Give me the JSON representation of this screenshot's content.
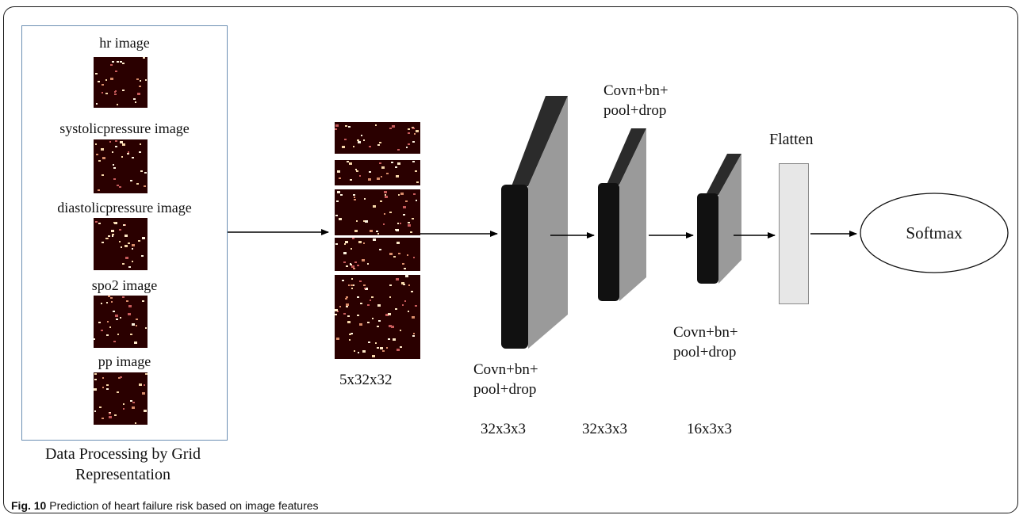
{
  "input_panel": {
    "images": [
      {
        "label": "hr image"
      },
      {
        "label": "systolicpressure image"
      },
      {
        "label": "diastolicpressure image"
      },
      {
        "label": "spo2 image"
      },
      {
        "label": "pp image"
      }
    ],
    "caption": "Data Processing by Grid Representation"
  },
  "stack": {
    "label": "5x32x32"
  },
  "layers": [
    {
      "label": "Covn+bn+ pool+drop",
      "dims": "32x3x3"
    },
    {
      "label": "Covn+bn+ pool+drop",
      "dims": "32x3x3"
    },
    {
      "label": "Covn+bn+ pool+drop",
      "dims": "16x3x3"
    }
  ],
  "flatten": {
    "label": "Flatten"
  },
  "output": {
    "label": "Softmax"
  },
  "figure": {
    "number": "Fig. 10",
    "caption": "Prediction of heart failure risk based on image features"
  },
  "colors": {
    "pixel_background": "#2a0000",
    "layer_front": "#111111",
    "layer_side": "#9a9a9a",
    "panel_border": "#6c8fb3",
    "flatten_fill": "#e7e7e7"
  }
}
